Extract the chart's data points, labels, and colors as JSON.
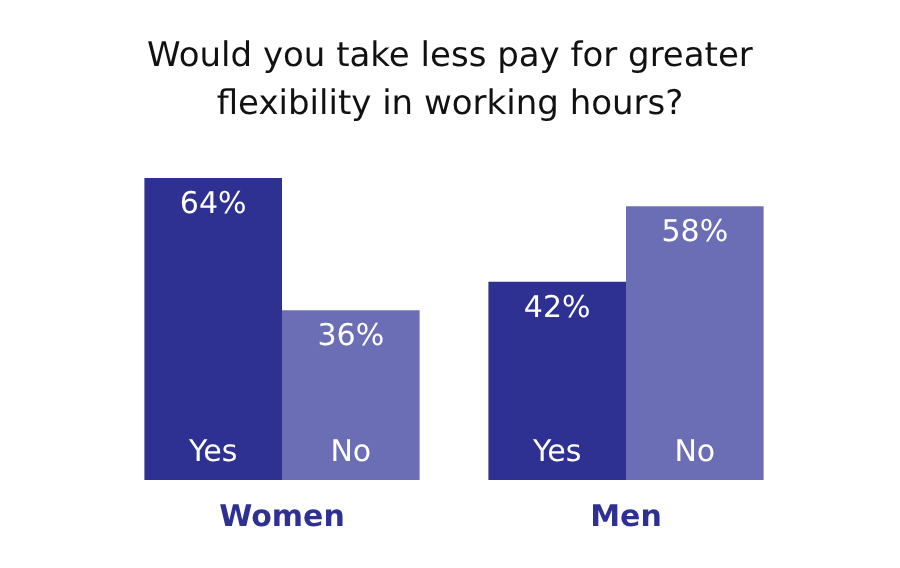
{
  "chart_data": {
    "type": "bar",
    "title": "Would you take less pay for greater flexibility in working hours?",
    "categories": [
      "Women",
      "Men"
    ],
    "series": [
      {
        "name": "Yes",
        "color": "#2e3192",
        "values": [
          64,
          42
        ],
        "value_labels": [
          "64%",
          "42%"
        ]
      },
      {
        "name": "No",
        "color": "#6b6db5",
        "values": [
          36,
          58
        ],
        "value_labels": [
          "36%",
          "58%"
        ]
      }
    ]
  }
}
